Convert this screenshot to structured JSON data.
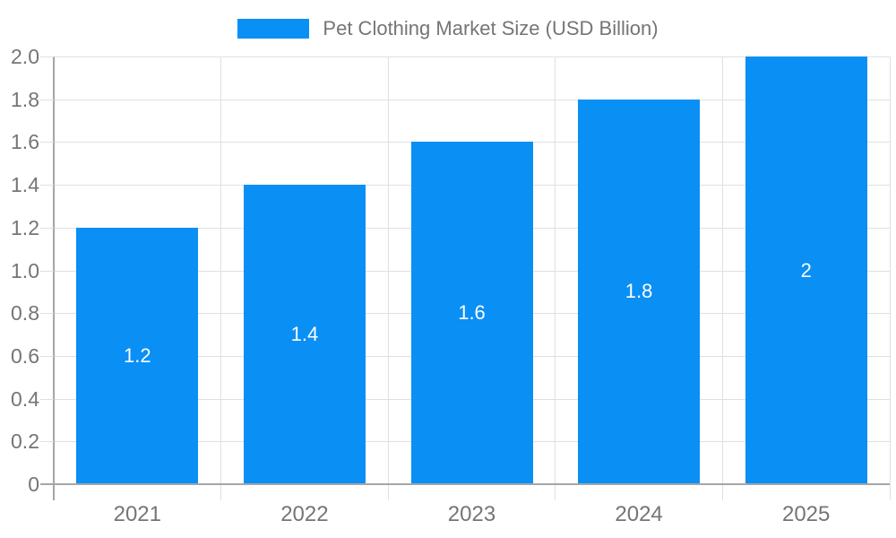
{
  "legend": {
    "label": "Pet Clothing Market Size (USD Billion)"
  },
  "chart_data": {
    "type": "bar",
    "title": "Pet Clothing Market Size (USD Billion)",
    "series_name": "Pet Clothing Market Size (USD Billion)",
    "categories": [
      "2021",
      "2022",
      "2023",
      "2024",
      "2025"
    ],
    "values": [
      1.2,
      1.4,
      1.6,
      1.8,
      2
    ],
    "bar_labels": [
      "1.2",
      "1.4",
      "1.6",
      "1.8",
      "2"
    ],
    "xlabel": "",
    "ylabel": "",
    "ylim": [
      0,
      2
    ],
    "ytick_step": 0.2,
    "ytick_labels": [
      "0",
      "0.2",
      "0.4",
      "0.6",
      "0.8",
      "1.0",
      "1.2",
      "1.4",
      "1.6",
      "1.8",
      "2.0"
    ],
    "grid": "on",
    "legend_position": "top-center",
    "colors": {
      "bar": "#0a8ff5",
      "grid": "#e0e0e0",
      "axis": "#a6a6a6",
      "text": "#757575",
      "bar_label": "#ffffff",
      "background": "#ffffff"
    }
  }
}
